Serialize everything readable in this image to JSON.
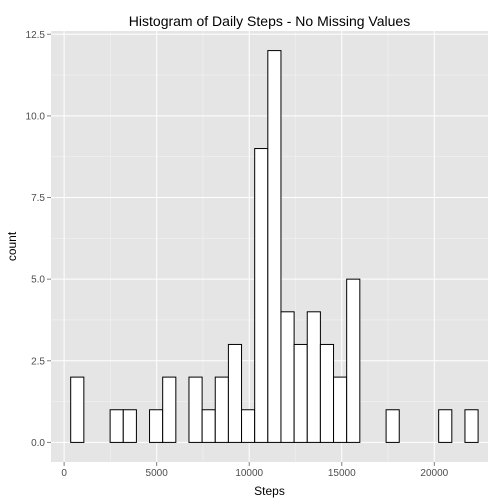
{
  "chart_data": {
    "type": "bar",
    "title": "Histogram of Daily Steps - No Missing Values",
    "xlabel": "Steps",
    "ylabel": "count",
    "xlim": [
      -709,
      22900
    ],
    "ylim": [
      -0.6,
      12.6
    ],
    "xticks": [
      0,
      5000,
      10000,
      15000,
      20000
    ],
    "xtick_labels": [
      "0",
      "5000",
      "10000",
      "15000",
      "20000"
    ],
    "yticks": [
      0,
      2.5,
      5,
      7.5,
      10,
      12.5
    ],
    "ytick_labels": [
      "0.0",
      "2.5",
      "5.0",
      "7.5",
      "10.0",
      "12.5"
    ],
    "bin_width": 710,
    "bins_start": -355,
    "values": [
      0,
      2,
      0,
      0,
      1,
      1,
      0,
      1,
      2,
      0,
      2,
      1,
      2,
      3,
      1,
      9,
      12,
      4,
      3,
      4,
      3,
      2,
      5,
      0,
      0,
      1,
      0,
      0,
      0,
      1,
      0,
      1,
      0
    ],
    "panel_background": "#e5e5e5",
    "bar_fill": "#ffffff",
    "bar_outline": "#000000",
    "grid": true,
    "legend": "none"
  }
}
